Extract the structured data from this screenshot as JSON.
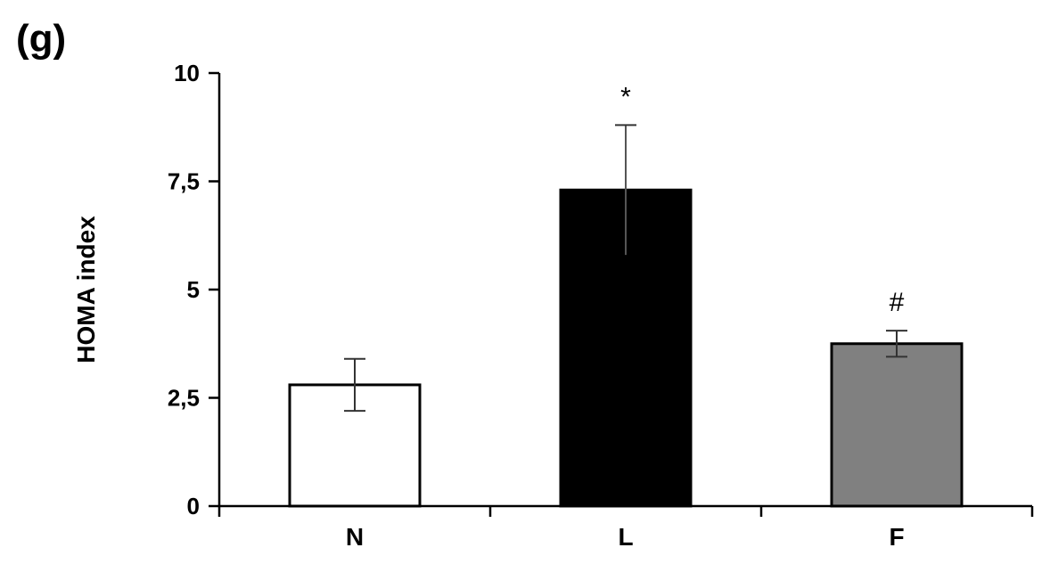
{
  "panel_label": "(g)",
  "chart_data": {
    "type": "bar",
    "title": "",
    "xlabel": "",
    "ylabel": "HOMA index",
    "ylim": [
      0,
      10
    ],
    "yticks": [
      0,
      2.5,
      5,
      7.5,
      10
    ],
    "ytick_labels": [
      "0",
      "2,5",
      "5",
      "7,5",
      "10"
    ],
    "categories": [
      "N",
      "L",
      "F"
    ],
    "values": [
      2.8,
      7.3,
      3.75
    ],
    "errors": [
      0.6,
      1.5,
      0.3
    ],
    "bar_colors": [
      "#ffffff",
      "#000000",
      "#808080"
    ],
    "annotations": [
      "",
      "*",
      "#"
    ],
    "grid": false
  }
}
